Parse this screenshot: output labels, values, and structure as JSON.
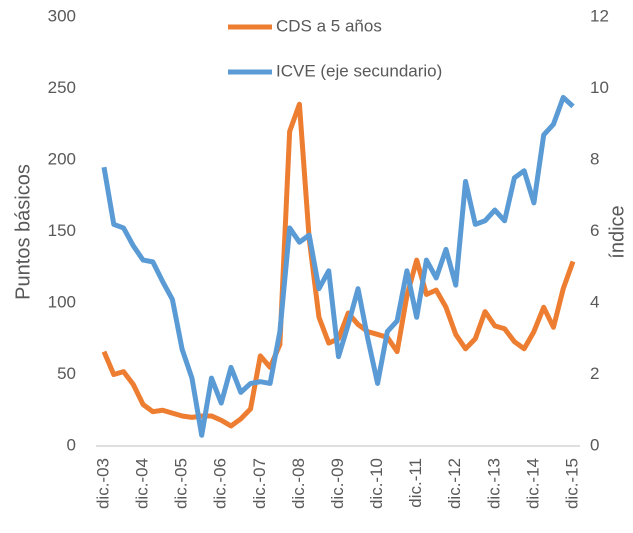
{
  "chart_data": {
    "type": "line",
    "categories": [
      "dic.-03",
      null,
      null,
      null,
      "dic.-04",
      null,
      null,
      null,
      "dic.-05",
      null,
      null,
      null,
      "dic.-06",
      null,
      null,
      null,
      "dic.-07",
      null,
      null,
      null,
      "dic.-08",
      null,
      null,
      null,
      "dic.-09",
      null,
      null,
      null,
      "dic.-10",
      null,
      null,
      null,
      "dic.-11",
      null,
      null,
      null,
      "dic.-12",
      null,
      null,
      null,
      "dic.-13",
      null,
      null,
      null,
      "dic.-14",
      null,
      null,
      null,
      "dic.-15"
    ],
    "series": [
      {
        "name": "CDS a 5 años",
        "color": "#ed7d31",
        "values": [
          66,
          50,
          52,
          43,
          29,
          24,
          25,
          23,
          21,
          20,
          21,
          21,
          18,
          14,
          19,
          26,
          63,
          55,
          71,
          220,
          239,
          145,
          90,
          72,
          75,
          93,
          85,
          80,
          78,
          76,
          66,
          105,
          130,
          106,
          109,
          97,
          78,
          68,
          75,
          94,
          84,
          82,
          73,
          68,
          80,
          97,
          83,
          110,
          129
        ]
      },
      {
        "name": "ICVE (eje secundario)",
        "color": "#5b9bd5",
        "axis": "y2",
        "values": [
          7.8,
          6.2,
          6.1,
          5.6,
          5.2,
          5.15,
          4.6,
          4.1,
          2.7,
          1.9,
          0.3,
          1.9,
          1.2,
          2.2,
          1.5,
          1.75,
          1.8,
          1.75,
          3.2,
          6.1,
          5.7,
          5.9,
          4.4,
          4.9,
          2.5,
          3.4,
          4.4,
          3.0,
          1.75,
          3.2,
          3.5,
          4.9,
          3.6,
          5.2,
          4.7,
          5.5,
          4.5,
          7.4,
          6.2,
          6.3,
          6.6,
          6.3,
          7.5,
          7.7,
          6.8,
          8.7,
          9.0,
          9.75,
          9.5
        ]
      }
    ],
    "y_label": "Puntos básicos",
    "y2_label": "índice",
    "ylim": [
      0,
      300
    ],
    "yticks": [
      0,
      50,
      100,
      150,
      200,
      250,
      300
    ],
    "y2lim": [
      0,
      12
    ],
    "y2ticks": [
      0,
      2,
      4,
      6,
      8,
      10,
      12
    ],
    "grid": false
  }
}
